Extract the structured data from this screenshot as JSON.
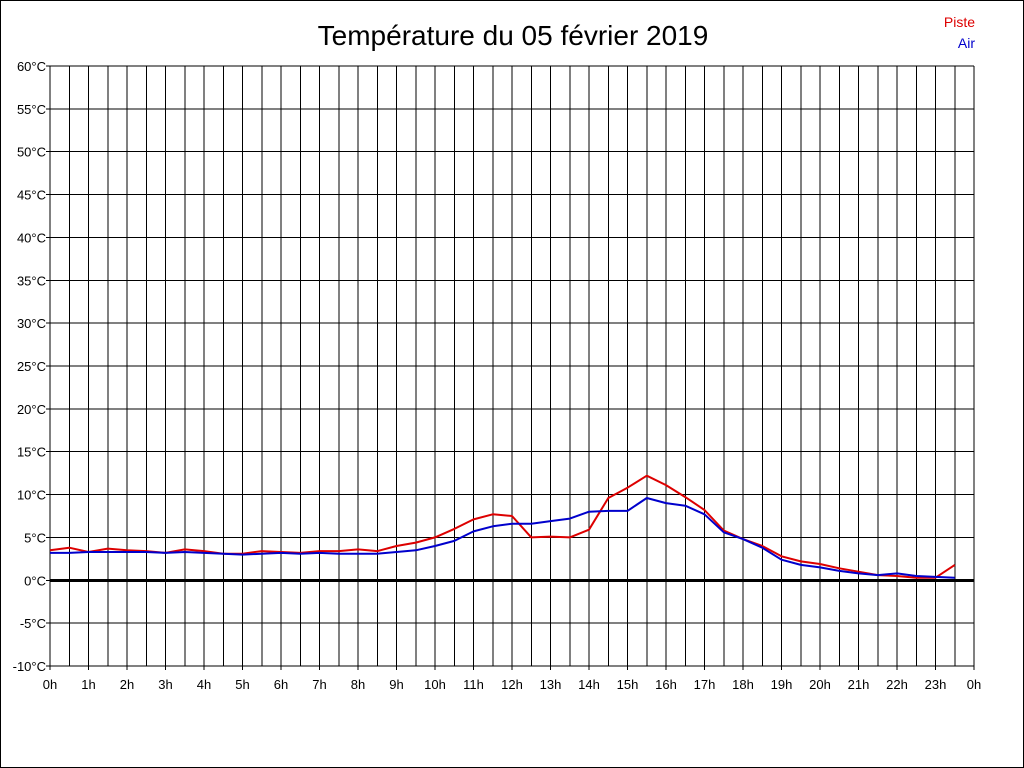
{
  "chart_data": {
    "type": "line",
    "title": "Température du 05 février 2019",
    "xlabel": "",
    "ylabel": "",
    "ylim": [
      -10,
      60
    ],
    "y_step": 5,
    "y_tick_labels": [
      "-10°C",
      "-5°C",
      "0°C",
      "5°C",
      "10°C",
      "15°C",
      "20°C",
      "25°C",
      "30°C",
      "35°C",
      "40°C",
      "45°C",
      "50°C",
      "55°C",
      "60°C"
    ],
    "x_range_hours": [
      0,
      24
    ],
    "x_tick_labels": [
      "0h",
      "1h",
      "2h",
      "3h",
      "4h",
      "5h",
      "6h",
      "7h",
      "8h",
      "9h",
      "10h",
      "11h",
      "12h",
      "13h",
      "14h",
      "15h",
      "16h",
      "17h",
      "18h",
      "19h",
      "20h",
      "21h",
      "22h",
      "23h",
      "0h"
    ],
    "grid": true,
    "zero_line": true,
    "legend_position": "top-right",
    "series": [
      {
        "name": "Piste",
        "color": "#dd0000",
        "x": [
          0,
          0.5,
          1,
          1.5,
          2,
          2.5,
          3,
          3.5,
          4,
          4.5,
          5,
          5.5,
          6,
          6.5,
          7,
          7.5,
          8,
          8.5,
          9,
          9.5,
          10,
          10.5,
          11,
          11.5,
          12,
          12.5,
          13,
          13.5,
          14,
          14.5,
          15,
          15.5,
          16,
          16.5,
          17,
          17.5,
          18,
          18.5,
          19,
          19.5,
          20,
          20.5,
          21,
          21.5,
          22,
          22.5,
          23,
          23.5
        ],
        "values": [
          3.5,
          3.8,
          3.3,
          3.7,
          3.5,
          3.4,
          3.2,
          3.6,
          3.4,
          3.1,
          3.1,
          3.4,
          3.3,
          3.2,
          3.4,
          3.4,
          3.6,
          3.4,
          4.0,
          4.4,
          5.0,
          6.0,
          7.1,
          7.7,
          7.5,
          5.0,
          5.1,
          5.0,
          5.9,
          9.6,
          10.8,
          12.2,
          11.1,
          9.7,
          8.2,
          5.8,
          4.8,
          4.0,
          2.8,
          2.2,
          1.9,
          1.4,
          1.0,
          0.6,
          0.5,
          0.3,
          0.3,
          1.8
        ]
      },
      {
        "name": "Air",
        "color": "#0000cc",
        "x": [
          0,
          0.5,
          1,
          1.5,
          2,
          2.5,
          3,
          3.5,
          4,
          4.5,
          5,
          5.5,
          6,
          6.5,
          7,
          7.5,
          8,
          8.5,
          9,
          9.5,
          10,
          10.5,
          11,
          11.5,
          12,
          12.5,
          13,
          13.5,
          14,
          14.5,
          15,
          15.5,
          16,
          16.5,
          17,
          17.5,
          18,
          18.5,
          19,
          19.5,
          20,
          20.5,
          21,
          21.5,
          22,
          22.5,
          23,
          23.5
        ],
        "values": [
          3.2,
          3.2,
          3.3,
          3.3,
          3.3,
          3.3,
          3.2,
          3.3,
          3.2,
          3.1,
          3.0,
          3.1,
          3.2,
          3.1,
          3.2,
          3.1,
          3.1,
          3.1,
          3.3,
          3.5,
          4.0,
          4.6,
          5.7,
          6.3,
          6.6,
          6.6,
          6.9,
          7.2,
          8.0,
          8.1,
          8.1,
          9.6,
          9.0,
          8.7,
          7.7,
          5.6,
          4.8,
          3.8,
          2.4,
          1.8,
          1.5,
          1.1,
          0.8,
          0.6,
          0.8,
          0.5,
          0.4,
          0.3
        ]
      }
    ]
  }
}
